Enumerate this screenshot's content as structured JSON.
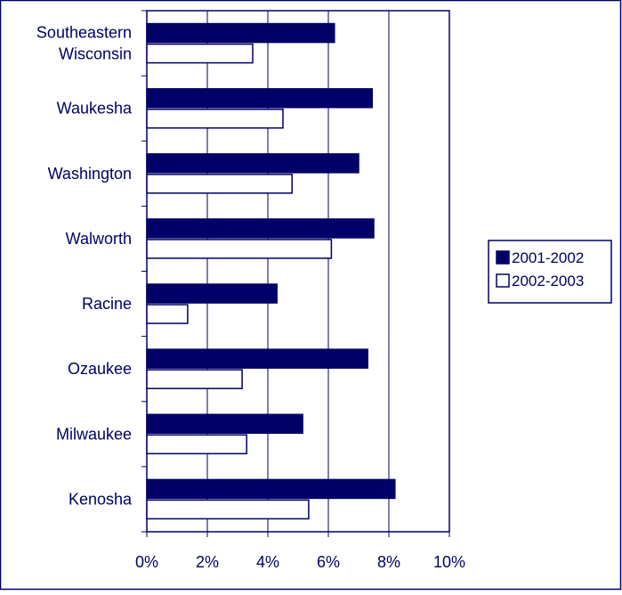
{
  "chart_data": {
    "type": "bar",
    "orientation": "horizontal",
    "categories": [
      [
        "Southeastern",
        "Wisconsin"
      ],
      [
        "Waukesha"
      ],
      [
        "Washington"
      ],
      [
        "Walworth"
      ],
      [
        "Racine"
      ],
      [
        "Ozaukee"
      ],
      [
        "Milwaukee"
      ],
      [
        "Kenosha"
      ]
    ],
    "series": [
      {
        "name": "2001-2002",
        "values": [
          6.2,
          7.45,
          7.0,
          7.5,
          4.3,
          7.3,
          5.15,
          8.2
        ],
        "fill": "#000066"
      },
      {
        "name": "2002-2003",
        "values": [
          3.5,
          4.5,
          4.8,
          6.1,
          1.35,
          3.15,
          3.3,
          5.35
        ],
        "fill": "#ffffff"
      }
    ],
    "xlim": [
      0,
      10
    ],
    "x_ticks": [
      "0%",
      "2%",
      "4%",
      "6%",
      "8%",
      "10%"
    ],
    "grid": true,
    "legend_position": "right",
    "colors": {
      "ink": "#000066",
      "background": "#ffffff"
    }
  }
}
